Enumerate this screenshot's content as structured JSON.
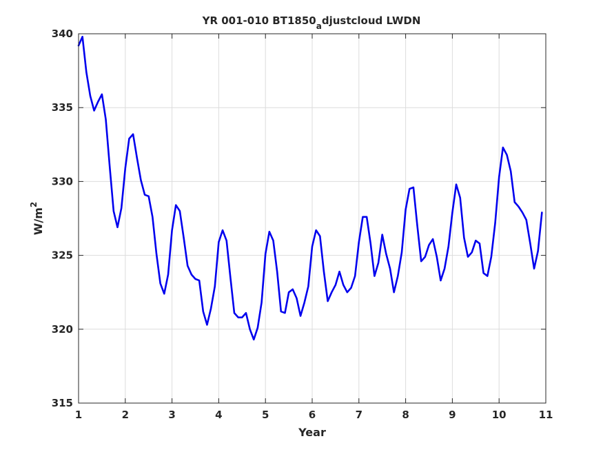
{
  "chart_data": {
    "type": "line",
    "title": {
      "main": "YR 001-010 BT1850",
      "subscript": "a",
      "rest": "djustcloud LWDN"
    },
    "xlabel": "Year",
    "ylabel": {
      "base": "W/m",
      "superscript": "2"
    },
    "xlim": [
      1,
      11
    ],
    "ylim": [
      315,
      340
    ],
    "xticks": [
      "1",
      "2",
      "3",
      "4",
      "5",
      "6",
      "7",
      "8",
      "9",
      "10",
      "11"
    ],
    "yticks": [
      "315",
      "320",
      "325",
      "330",
      "335",
      "340"
    ],
    "grid": true,
    "series_color": "#0000ee",
    "series": [
      {
        "x": [
          1.0,
          1.083,
          1.167,
          1.25,
          1.333,
          1.417,
          1.5,
          1.583,
          1.667,
          1.75,
          1.833,
          1.917,
          2.0,
          2.083,
          2.167,
          2.25,
          2.333,
          2.417,
          2.5,
          2.583,
          2.667,
          2.75,
          2.833,
          2.917,
          3.0,
          3.083,
          3.167,
          3.25,
          3.333,
          3.417,
          3.5,
          3.583,
          3.667,
          3.75,
          3.833,
          3.917,
          4.0,
          4.083,
          4.167,
          4.25,
          4.333,
          4.417,
          4.5,
          4.583,
          4.667,
          4.75,
          4.833,
          4.917,
          5.0,
          5.083,
          5.167,
          5.25,
          5.333,
          5.417,
          5.5,
          5.583,
          5.667,
          5.75,
          5.833,
          5.917,
          6.0,
          6.083,
          6.167,
          6.25,
          6.333,
          6.417,
          6.5,
          6.583,
          6.667,
          6.75,
          6.833,
          6.917,
          7.0,
          7.083,
          7.167,
          7.25,
          7.333,
          7.417,
          7.5,
          7.583,
          7.667,
          7.75,
          7.833,
          7.917,
          8.0,
          8.083,
          8.167,
          8.25,
          8.333,
          8.417,
          8.5,
          8.583,
          8.667,
          8.75,
          8.833,
          8.917,
          9.0,
          9.083,
          9.167,
          9.25,
          9.333,
          9.417,
          9.5,
          9.583,
          9.667,
          9.75,
          9.833,
          9.917,
          10.0,
          10.083,
          10.167,
          10.25,
          10.333,
          10.417,
          10.5,
          10.583,
          10.667,
          10.75,
          10.833,
          10.917
        ],
        "values": [
          339.2,
          339.8,
          337.4,
          335.8,
          334.8,
          335.4,
          335.9,
          334.2,
          331.0,
          328.0,
          326.9,
          328.2,
          330.9,
          332.9,
          333.2,
          331.6,
          330.1,
          329.1,
          329.0,
          327.6,
          325.1,
          323.1,
          322.4,
          323.7,
          326.7,
          328.4,
          328.0,
          326.2,
          324.3,
          323.7,
          323.4,
          323.3,
          321.2,
          320.3,
          321.4,
          322.9,
          325.9,
          326.7,
          326.0,
          323.5,
          321.1,
          320.8,
          320.8,
          321.1,
          320.0,
          319.3,
          320.1,
          321.8,
          325.1,
          326.6,
          326.0,
          323.9,
          321.2,
          321.1,
          322.5,
          322.7,
          322.1,
          320.9,
          321.8,
          322.9,
          325.6,
          326.7,
          326.3,
          323.9,
          321.9,
          322.5,
          323.0,
          323.9,
          323.0,
          322.5,
          322.8,
          323.6,
          325.9,
          327.6,
          327.6,
          325.8,
          323.6,
          324.5,
          326.4,
          325.1,
          324.1,
          322.5,
          323.6,
          325.2,
          328.1,
          329.5,
          329.6,
          327.0,
          324.6,
          324.9,
          325.7,
          326.1,
          324.9,
          323.3,
          324.1,
          325.6,
          327.9,
          329.8,
          328.9,
          326.2,
          324.9,
          325.2,
          326.0,
          325.8,
          323.8,
          323.6,
          324.9,
          327.2,
          330.3,
          332.3,
          331.8,
          330.7,
          328.6,
          328.3,
          327.9,
          327.4,
          325.8,
          324.1,
          325.3,
          327.9
        ]
      }
    ]
  }
}
